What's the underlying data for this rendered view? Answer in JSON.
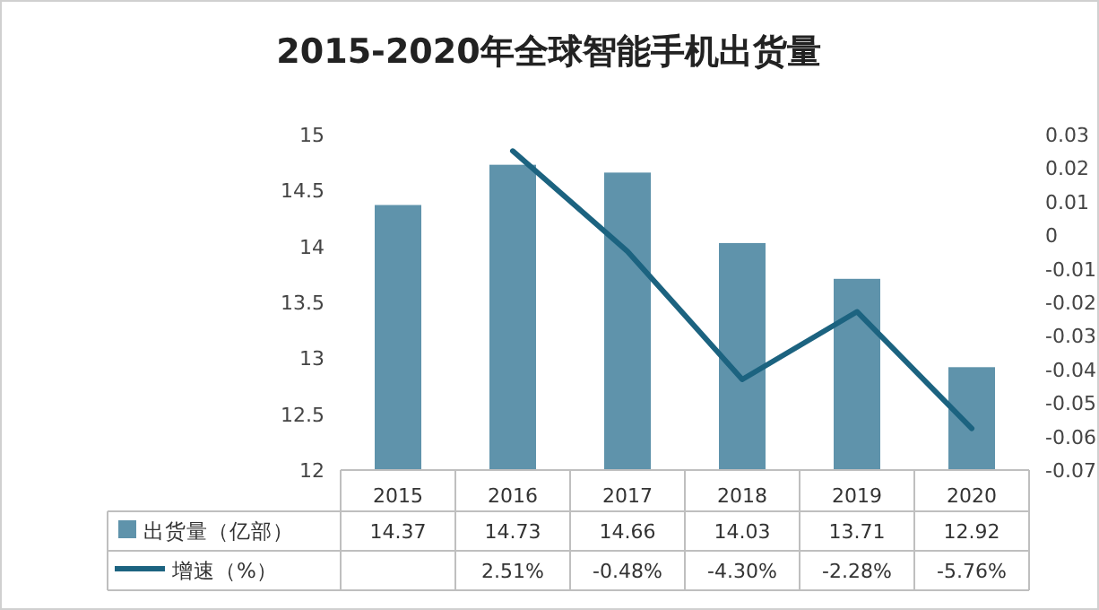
{
  "chart_data": {
    "type": "bar",
    "title": "2015-2020年全球智能手机出货量",
    "categories": [
      "2015",
      "2016",
      "2017",
      "2018",
      "2019",
      "2020"
    ],
    "series": [
      {
        "name": "出货量（亿部）",
        "color": "#5f93ab",
        "values": [
          14.37,
          14.73,
          14.66,
          14.03,
          13.71,
          12.92
        ],
        "value_labels": [
          "14.37",
          "14.73",
          "14.66",
          "14.03",
          "13.71",
          "12.92"
        ]
      },
      {
        "name": "增速（%）",
        "type": "line",
        "axis": "y2",
        "color": "#1c6380",
        "values": [
          null,
          0.0251,
          -0.0048,
          -0.043,
          -0.0228,
          -0.0576
        ],
        "value_labels": [
          null,
          "2.51%",
          "-0.48%",
          "-4.30%",
          "-2.28%",
          "-5.76%"
        ]
      }
    ],
    "ylim": [
      12,
      15
    ],
    "yticks": [
      12,
      12.5,
      13,
      13.5,
      14,
      14.5,
      15
    ],
    "y2lim": [
      -0.07,
      0.03
    ],
    "y2ticks": [
      0.03,
      0.02,
      0.01,
      0,
      -0.01,
      -0.02,
      -0.03,
      -0.04,
      -0.05,
      -0.06,
      -0.07
    ],
    "legend": "bottom"
  }
}
